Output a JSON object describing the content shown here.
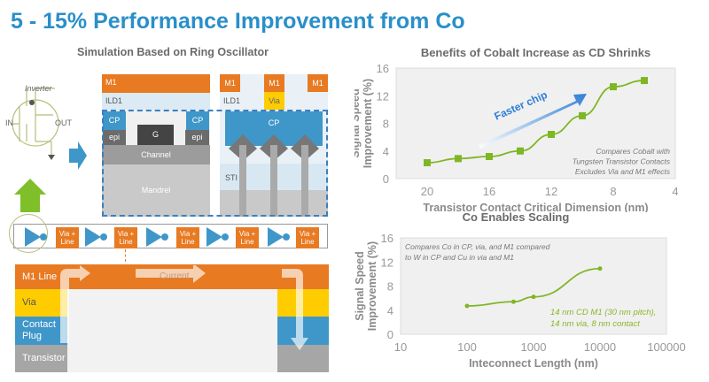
{
  "slide": {
    "title": "5 - 15% Performance Improvement from Co",
    "left_subtitle": "Simulation Based on Ring Oscillator"
  },
  "diagram": {
    "inverter_label": "Inverter",
    "in_label": "IN",
    "out_label": "OUT",
    "m1": "M1",
    "ild1": "ILD1",
    "via": "Via",
    "cp": "CP",
    "epi": "epi",
    "gate": "G",
    "channel": "Channel",
    "mandrel": "Mandrel",
    "sti": "STI",
    "via_line": [
      "Via +",
      "Line"
    ],
    "stack": {
      "m1_line": "M1 Line",
      "via": "Via",
      "contact_plug": [
        "Contact",
        "Plug"
      ],
      "transistor": "Transistor",
      "current": "Current"
    },
    "colors": {
      "m1": "#e87a22",
      "via": "#ffcc00",
      "cp": "#3f97c9",
      "transistor": "#a6a6a6",
      "accent_green": "#8dc63f"
    }
  },
  "chart_data": [
    {
      "type": "line",
      "title": "Benefits of Cobalt Increase as CD Shrinks",
      "xlabel": "Transistor Contact Critical Dimension (nm)",
      "ylabel": [
        "Signal Speed",
        "Improvement (%)"
      ],
      "xlim": [
        22,
        4
      ],
      "ylim": [
        0,
        16
      ],
      "x_ticks": [
        20,
        16,
        12,
        8,
        4
      ],
      "y_ticks": [
        0,
        4,
        8,
        12,
        16
      ],
      "x_scale": "linear-reversed",
      "grid": false,
      "series": [
        {
          "x": [
            20,
            18,
            16,
            14,
            12,
            10,
            8,
            6
          ],
          "y": [
            2.3,
            2.9,
            3.2,
            4.0,
            6.4,
            9.1,
            13.3,
            14.2
          ],
          "color": "#7fb624",
          "marker": "square"
        }
      ],
      "annotations": {
        "arrow_label": "Faster chip",
        "note": [
          "Compares Cobalt with",
          "Tungsten Transistor Contacts",
          "Excludes Via and M1 effects"
        ]
      }
    },
    {
      "type": "line",
      "title": "Co Enables Scaling",
      "xlabel": "Inteconnect Length (nm)",
      "ylabel": [
        "Signal Speed",
        "Improvement (%)"
      ],
      "xlim": [
        10,
        100000
      ],
      "ylim": [
        0,
        16
      ],
      "x_scale": "log",
      "x_ticks": [
        "10",
        "100",
        "1000",
        "10000",
        "100000"
      ],
      "y_ticks": [
        0,
        4,
        8,
        12,
        16
      ],
      "grid": false,
      "series": [
        {
          "x": [
            100,
            500,
            1000,
            10000
          ],
          "y": [
            4.7,
            5.4,
            6.2,
            10.9
          ],
          "color": "#7fb624",
          "marker": "circle"
        }
      ],
      "annotations": {
        "note": [
          "Compares Co in CP, via, and M1 compared",
          "to W in CP and Cu in via and M1"
        ],
        "series_note": [
          "14 nm CD M1 (30 nm pitch),",
          "14 nm via, 8 nm contact"
        ]
      }
    }
  ]
}
